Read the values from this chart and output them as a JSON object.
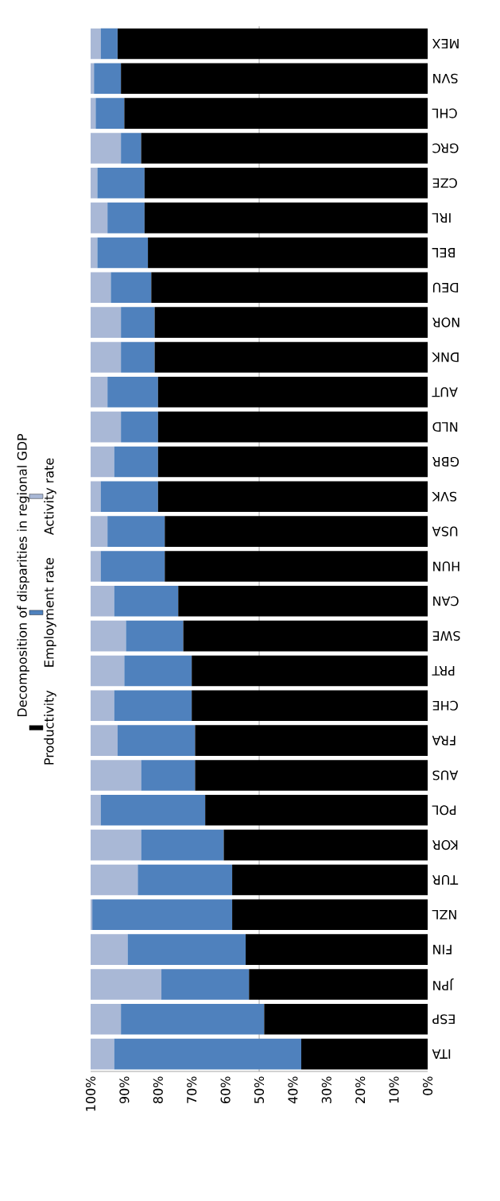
{
  "chart_data": {
    "type": "bar",
    "title": "Decomposition of disparities in regional GDP",
    "orientation": "horizontal",
    "stacked": true,
    "categories": [
      "MEX",
      "SVN",
      "CHL",
      "GRC",
      "CZE",
      "IRL",
      "BEL",
      "DEU",
      "NOR",
      "DNK",
      "AUT",
      "NLD",
      "GBR",
      "SVK",
      "USA",
      "HUN",
      "CAN",
      "SWE",
      "PRT",
      "CHE",
      "FRA",
      "AUS",
      "POL",
      "KOR",
      "TUR",
      "NZL",
      "FIN",
      "JPN",
      "ESP",
      "ITA"
    ],
    "series": [
      {
        "name": "Productivity",
        "color": "#000000",
        "values": [
          92,
          91,
          90,
          85,
          84,
          84,
          83,
          82,
          81,
          81,
          80,
          80,
          80,
          80,
          78,
          78,
          74,
          72.5,
          70,
          70,
          69,
          69,
          66,
          60.5,
          58,
          58,
          54,
          53,
          48.5,
          37.5
        ]
      },
      {
        "name": "Employment rate",
        "color": "#4f81bd",
        "values": [
          5,
          8,
          8.5,
          6,
          14,
          11,
          15,
          12,
          10,
          10,
          15,
          11,
          13,
          17,
          17,
          19,
          19,
          17,
          20,
          23,
          23,
          16,
          31,
          24.5,
          28,
          41.5,
          35,
          26,
          42.5,
          55.5
        ]
      },
      {
        "name": "Activity rate",
        "color": "#a9b8d6",
        "values": [
          3,
          1,
          1.5,
          9,
          2,
          5,
          2,
          6,
          9,
          9,
          5,
          9,
          7,
          3,
          5,
          3,
          7,
          10.5,
          10,
          7,
          8,
          15,
          3,
          15,
          14,
          0.5,
          11,
          21,
          9,
          7
        ]
      }
    ],
    "xlim": [
      100,
      0
    ],
    "xticks": [
      {
        "value": 100,
        "label": "100%"
      },
      {
        "value": 90,
        "label": "90%"
      },
      {
        "value": 80,
        "label": "80%"
      },
      {
        "value": 70,
        "label": "70%"
      },
      {
        "value": 60,
        "label": "60%"
      },
      {
        "value": 50,
        "label": "50%"
      },
      {
        "value": 40,
        "label": "40%"
      },
      {
        "value": 30,
        "label": "30%"
      },
      {
        "value": 20,
        "label": "20%"
      },
      {
        "value": 10,
        "label": "10%"
      },
      {
        "value": 0,
        "label": "0%"
      }
    ],
    "ref_lines": [
      {
        "axis": "x",
        "value": 50,
        "color": "#808080"
      }
    ],
    "legend": "left"
  }
}
